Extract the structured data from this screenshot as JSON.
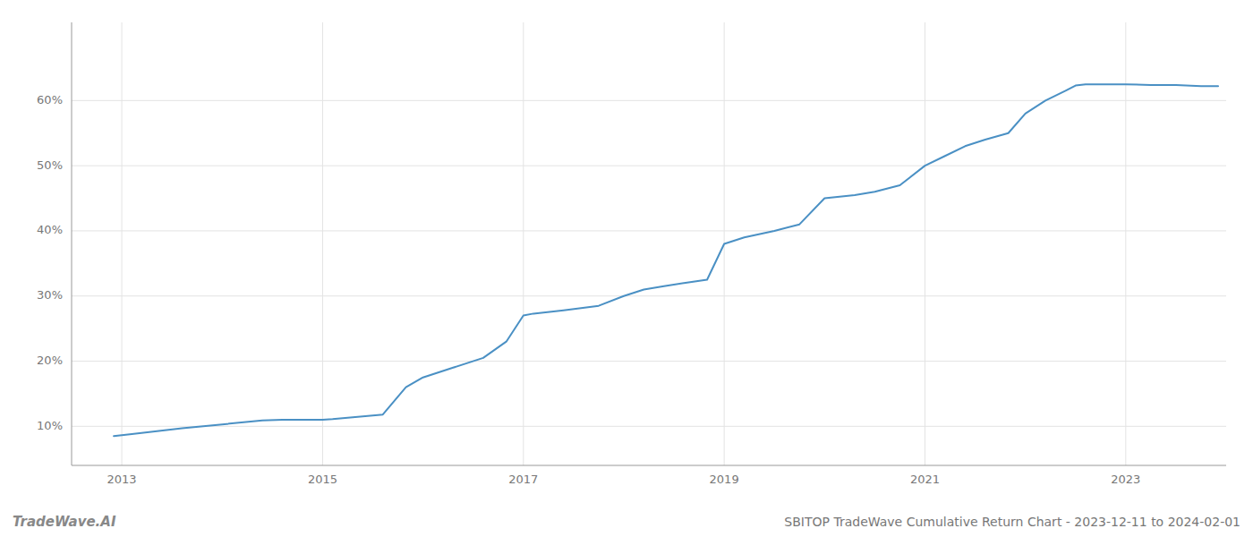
{
  "chart_data": {
    "type": "line",
    "title": "SBITOP TradeWave Cumulative Return Chart - 2023-12-11 to 2024-02-01",
    "annotations": [
      "TradeWave.AI"
    ],
    "color": "#4a90c4",
    "grid": true,
    "x": [
      2012.92,
      2013.1,
      2013.6,
      2014.0,
      2014.4,
      2014.6,
      2014.83,
      2015.0,
      2015.1,
      2015.3,
      2015.6,
      2015.83,
      2016.0,
      2016.3,
      2016.6,
      2016.83,
      2017.0,
      2017.1,
      2017.4,
      2017.75,
      2018.0,
      2018.2,
      2018.4,
      2018.6,
      2018.83,
      2019.0,
      2019.2,
      2019.5,
      2019.75,
      2020.0,
      2020.3,
      2020.5,
      2020.75,
      2021.0,
      2021.2,
      2021.4,
      2021.6,
      2021.83,
      2022.0,
      2022.2,
      2022.4,
      2022.5,
      2022.6,
      2022.75,
      2023.0,
      2023.25,
      2023.5,
      2023.75,
      2023.92
    ],
    "values": [
      0.085,
      0.088,
      0.097,
      0.103,
      0.109,
      0.11,
      0.11,
      0.11,
      0.111,
      0.114,
      0.118,
      0.16,
      0.175,
      0.19,
      0.205,
      0.23,
      0.27,
      0.273,
      0.278,
      0.285,
      0.3,
      0.31,
      0.315,
      0.32,
      0.325,
      0.38,
      0.39,
      0.4,
      0.41,
      0.45,
      0.455,
      0.46,
      0.47,
      0.5,
      0.515,
      0.53,
      0.54,
      0.55,
      0.58,
      0.6,
      0.615,
      0.623,
      0.625,
      0.625,
      0.625,
      0.624,
      0.624,
      0.622,
      0.622
    ],
    "xlim": [
      2012.5,
      2024.0
    ],
    "ylim": [
      0.04,
      0.72
    ],
    "xticks": [
      2013,
      2015,
      2017,
      2019,
      2021,
      2023
    ],
    "yticks": [
      {
        "value": 0.1,
        "label": "10%"
      },
      {
        "value": 0.2,
        "label": "20%"
      },
      {
        "value": 0.3,
        "label": "30%"
      },
      {
        "value": 0.4,
        "label": "40%"
      },
      {
        "value": 0.5,
        "label": "50%"
      },
      {
        "value": 0.6,
        "label": "60%"
      }
    ]
  }
}
